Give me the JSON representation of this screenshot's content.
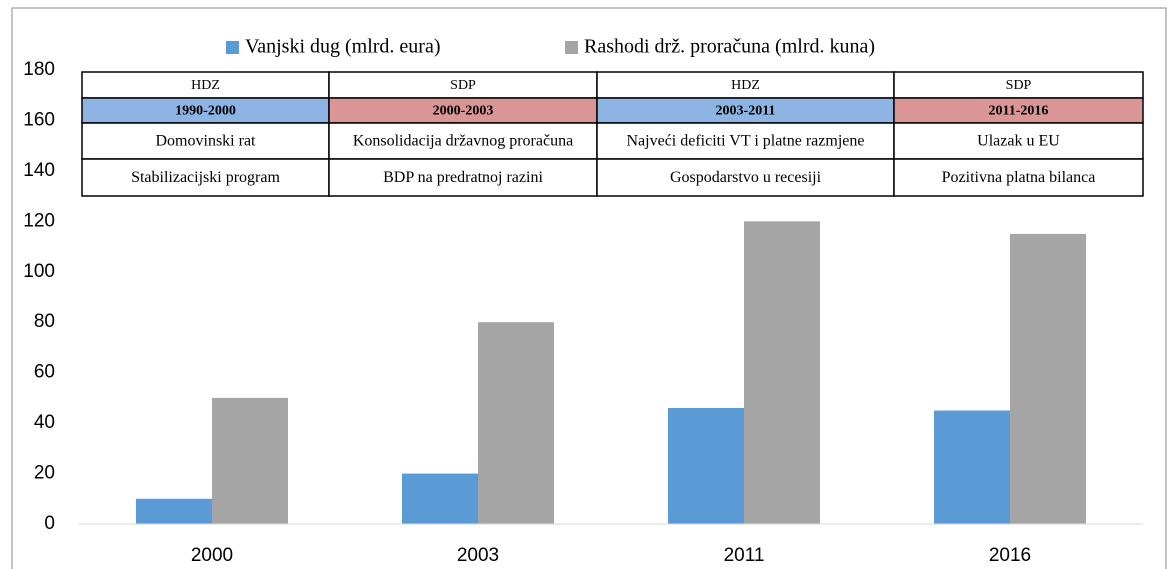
{
  "chart_data": {
    "type": "bar",
    "categories": [
      "2000",
      "2003",
      "2011",
      "2016"
    ],
    "series": [
      {
        "name": "Vanjski dug (mlrd. eura)",
        "color": "#5b9bd5",
        "values": [
          10,
          20,
          46,
          45
        ]
      },
      {
        "name": "Rashodi drž. proračuna (mlrd. kuna)",
        "color": "#a5a5a5",
        "values": [
          50,
          80,
          120,
          115
        ]
      }
    ],
    "ylim": [
      0,
      180
    ],
    "yticks": [
      0,
      20,
      40,
      60,
      80,
      100,
      120,
      140,
      160,
      180
    ],
    "grid": false,
    "table": {
      "rows": [
        [
          "HDZ",
          "SDP",
          "HDZ",
          "SDP"
        ],
        [
          "1990-2000",
          "2000-2003",
          "2003-2011",
          "2011-2016"
        ],
        [
          "Domovinski rat",
          "Konsolidacija državnog proračuna",
          "Najveći deficiti VT i platne razmjene",
          "Ulazak u EU"
        ],
        [
          "Stabilizacijski program",
          "BDP na predratnoj razini",
          "Gospodarstvo u recesiji",
          "Pozitivna platna bilanca"
        ]
      ]
    }
  }
}
